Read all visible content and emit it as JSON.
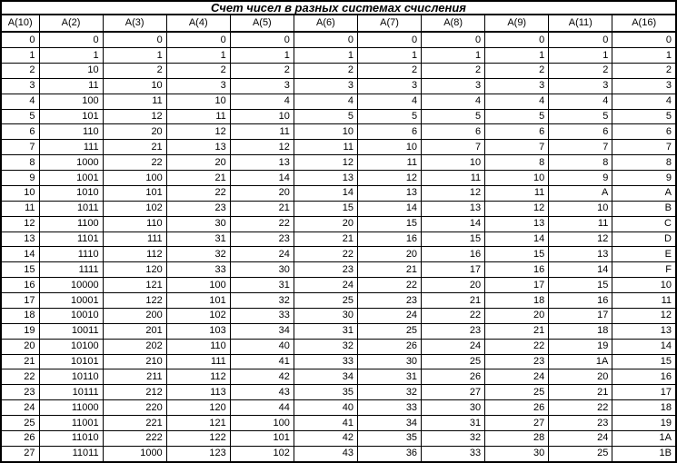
{
  "table": {
    "title": "Счет чисел в разных системах счисления",
    "columns": [
      "A(10)",
      "A(2)",
      "A(3)",
      "A(4)",
      "A(5)",
      "A(6)",
      "A(7)",
      "A(8)",
      "A(9)",
      "A(11)",
      "A(16)"
    ],
    "rows": [
      [
        "0",
        "0",
        "0",
        "0",
        "0",
        "0",
        "0",
        "0",
        "0",
        "0",
        "0"
      ],
      [
        "1",
        "1",
        "1",
        "1",
        "1",
        "1",
        "1",
        "1",
        "1",
        "1",
        "1"
      ],
      [
        "2",
        "10",
        "2",
        "2",
        "2",
        "2",
        "2",
        "2",
        "2",
        "2",
        "2"
      ],
      [
        "3",
        "11",
        "10",
        "3",
        "3",
        "3",
        "3",
        "3",
        "3",
        "3",
        "3"
      ],
      [
        "4",
        "100",
        "11",
        "10",
        "4",
        "4",
        "4",
        "4",
        "4",
        "4",
        "4"
      ],
      [
        "5",
        "101",
        "12",
        "11",
        "10",
        "5",
        "5",
        "5",
        "5",
        "5",
        "5"
      ],
      [
        "6",
        "110",
        "20",
        "12",
        "11",
        "10",
        "6",
        "6",
        "6",
        "6",
        "6"
      ],
      [
        "7",
        "111",
        "21",
        "13",
        "12",
        "11",
        "10",
        "7",
        "7",
        "7",
        "7"
      ],
      [
        "8",
        "1000",
        "22",
        "20",
        "13",
        "12",
        "11",
        "10",
        "8",
        "8",
        "8"
      ],
      [
        "9",
        "1001",
        "100",
        "21",
        "14",
        "13",
        "12",
        "11",
        "10",
        "9",
        "9"
      ],
      [
        "10",
        "1010",
        "101",
        "22",
        "20",
        "14",
        "13",
        "12",
        "11",
        "A",
        "A"
      ],
      [
        "11",
        "1011",
        "102",
        "23",
        "21",
        "15",
        "14",
        "13",
        "12",
        "10",
        "B"
      ],
      [
        "12",
        "1100",
        "110",
        "30",
        "22",
        "20",
        "15",
        "14",
        "13",
        "11",
        "C"
      ],
      [
        "13",
        "1101",
        "111",
        "31",
        "23",
        "21",
        "16",
        "15",
        "14",
        "12",
        "D"
      ],
      [
        "14",
        "1110",
        "112",
        "32",
        "24",
        "22",
        "20",
        "16",
        "15",
        "13",
        "E"
      ],
      [
        "15",
        "1111",
        "120",
        "33",
        "30",
        "23",
        "21",
        "17",
        "16",
        "14",
        "F"
      ],
      [
        "16",
        "10000",
        "121",
        "100",
        "31",
        "24",
        "22",
        "20",
        "17",
        "15",
        "10"
      ],
      [
        "17",
        "10001",
        "122",
        "101",
        "32",
        "25",
        "23",
        "21",
        "18",
        "16",
        "11"
      ],
      [
        "18",
        "10010",
        "200",
        "102",
        "33",
        "30",
        "24",
        "22",
        "20",
        "17",
        "12"
      ],
      [
        "19",
        "10011",
        "201",
        "103",
        "34",
        "31",
        "25",
        "23",
        "21",
        "18",
        "13"
      ],
      [
        "20",
        "10100",
        "202",
        "110",
        "40",
        "32",
        "26",
        "24",
        "22",
        "19",
        "14"
      ],
      [
        "21",
        "10101",
        "210",
        "111",
        "41",
        "33",
        "30",
        "25",
        "23",
        "1A",
        "15"
      ],
      [
        "22",
        "10110",
        "211",
        "112",
        "42",
        "34",
        "31",
        "26",
        "24",
        "20",
        "16"
      ],
      [
        "23",
        "10111",
        "212",
        "113",
        "43",
        "35",
        "32",
        "27",
        "25",
        "21",
        "17"
      ],
      [
        "24",
        "11000",
        "220",
        "120",
        "44",
        "40",
        "33",
        "30",
        "26",
        "22",
        "18"
      ],
      [
        "25",
        "11001",
        "221",
        "121",
        "100",
        "41",
        "34",
        "31",
        "27",
        "23",
        "19"
      ],
      [
        "26",
        "11010",
        "222",
        "122",
        "101",
        "42",
        "35",
        "32",
        "28",
        "24",
        "1A"
      ],
      [
        "27",
        "11011",
        "1000",
        "123",
        "102",
        "43",
        "36",
        "33",
        "30",
        "25",
        "1B"
      ]
    ],
    "colors": {
      "grid": "#000000",
      "background": "#ffffff",
      "text": "#000000"
    }
  }
}
